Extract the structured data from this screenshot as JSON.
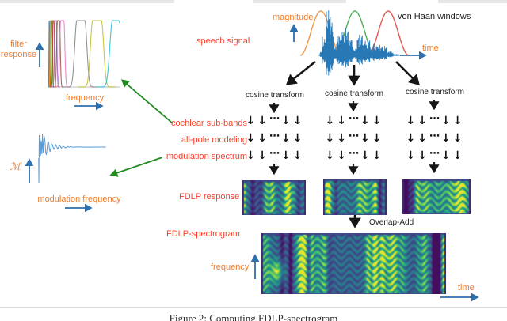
{
  "figure": {
    "caption": "Figure 2: Computing FDLP-spectrogram",
    "labels": {
      "filter_response": "filter\nresponse",
      "frequency_axis": "frequency",
      "mod_m": "ℳ",
      "modulation_frequency": "modulation frequency",
      "speech_signal": "speech signal",
      "magnitude": "magnitude",
      "von_haan": "von Haan windows",
      "time_top": "time",
      "cosine_transform": "cosine transform",
      "cochlear_subbands": "cochlear sub-bands",
      "all_pole_modeling": "all-pole modeling",
      "modulation_spectrum": "modulation spectrum",
      "fdlp_response": "FDLP response",
      "overlap_add": "Overlap-Add",
      "fdlp_spectrogram": "FDLP-spectrogram",
      "frequency_bottom": "frequency",
      "time_bottom": "time"
    },
    "grid": {
      "pattern": [
        "↓",
        "↓",
        "⋯",
        "↓",
        "↓"
      ]
    },
    "colors": {
      "red_label": "#f8402e",
      "orange_label": "#ee7d2e",
      "blue_arrow": "#2e6fad",
      "green_arrow": "#228b22",
      "black": "#161616",
      "waveform_blue": "#2878b5",
      "mod_signal_blue": "#5b9bd5",
      "window_orange": "#f2994a",
      "window_green": "#4eae52",
      "window_red": "#e4584e",
      "plot_baseline": "#c9c9c9",
      "topbar_gray": "#e5e5e5",
      "separator_gray": "#d8d8d8",
      "filter_bank": [
        "#1f77b4",
        "#ff7f0e",
        "#2ca02c",
        "#d62728",
        "#9467bd",
        "#8c564b",
        "#e377c2",
        "#7f7f7f",
        "#bcbd22",
        "#17becf"
      ],
      "viridis": [
        "#440154",
        "#414487",
        "#2a788e",
        "#22a884",
        "#7ad151",
        "#fde725"
      ]
    }
  }
}
